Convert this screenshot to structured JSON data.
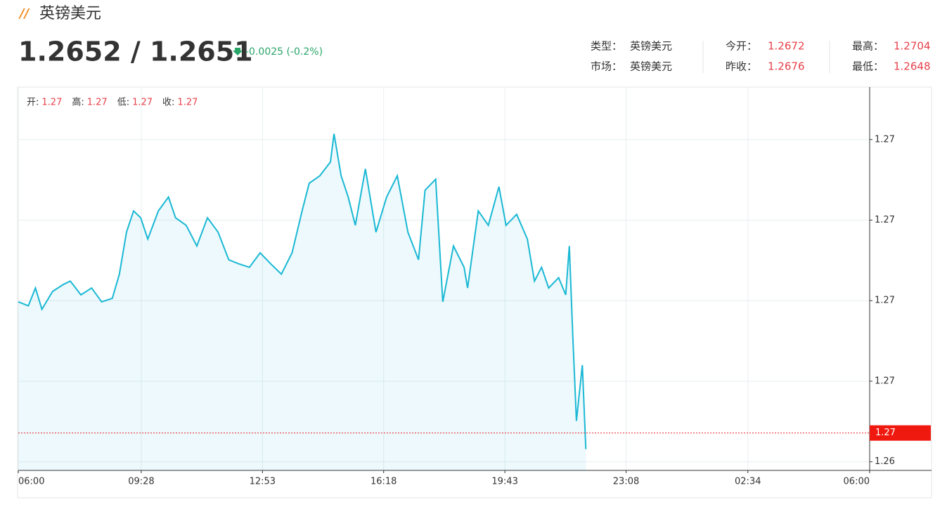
{
  "header": {
    "title": "英镑美元",
    "price": "1.2652 / 1.2651",
    "change": "-0.0025 (-0.2%)",
    "info": [
      [
        {
          "label": "类型：",
          "value": "英镑美元"
        },
        {
          "label": "今开：",
          "value": "1.2672"
        },
        {
          "label": "最高：",
          "value": "1.2704"
        }
      ],
      [
        {
          "label": "市场：",
          "value": "英镑美元"
        },
        {
          "label": "昨收：",
          "value": "1.2676"
        },
        {
          "label": "最低：",
          "value": "1.2648"
        }
      ]
    ]
  },
  "chart_data": {
    "type": "line",
    "ohlc": [
      {
        "label": "开:",
        "value": 1.27
      },
      {
        "label": "高:",
        "value": 1.27
      },
      {
        "label": "低:",
        "value": 1.27
      },
      {
        "label": "收:",
        "value": 1.27
      }
    ],
    "x": [
      0,
      17,
      29,
      40,
      58,
      76,
      88,
      106,
      124,
      141,
      159,
      171,
      183,
      195,
      207,
      219,
      237,
      254,
      266,
      284,
      302,
      320,
      338,
      356,
      373,
      391,
      409,
      427,
      445,
      463,
      480,
      492,
      510,
      528,
      534,
      546,
      558,
      570,
      587,
      605,
      623,
      641,
      659,
      677,
      688,
      706,
      718,
      736,
      754,
      760,
      778,
      795,
      813,
      825,
      843,
      861,
      873,
      885,
      897,
      914,
      926,
      932,
      938,
      944,
      954,
      960
    ],
    "series": [
      {
        "name": "英镑美元",
        "color": "#1ab8d4",
        "values": [
          1.26748,
          1.26741,
          1.26772,
          1.26735,
          1.26766,
          1.26778,
          1.26784,
          1.2676,
          1.26772,
          1.26748,
          1.26754,
          1.26796,
          1.26869,
          1.26906,
          1.26894,
          1.26857,
          1.26906,
          1.2693,
          1.26894,
          1.26881,
          1.26845,
          1.26894,
          1.26869,
          1.26821,
          1.26814,
          1.26808,
          1.26833,
          1.26814,
          1.26796,
          1.26833,
          1.26906,
          1.26954,
          1.26967,
          1.26991,
          1.2704,
          1.26967,
          1.2693,
          1.26881,
          1.26979,
          1.26869,
          1.2693,
          1.26967,
          1.26869,
          1.26821,
          1.26942,
          1.26961,
          1.26748,
          1.26845,
          1.26808,
          1.26772,
          1.26906,
          1.26881,
          1.26948,
          1.26881,
          1.269,
          1.26857,
          1.26784,
          1.26808,
          1.26772,
          1.2679,
          1.2676,
          1.26845,
          1.26687,
          1.26541,
          1.26638,
          1.26492
        ]
      }
    ],
    "current": {
      "value": 1.2652,
      "label": "1.27"
    },
    "xlim": [
      0,
      1440
    ],
    "xticks": [
      {
        "value": 0,
        "label": "06:00"
      },
      {
        "value": 208,
        "label": "09:28"
      },
      {
        "value": 413,
        "label": "12:53"
      },
      {
        "value": 618,
        "label": "16:18"
      },
      {
        "value": 823,
        "label": "19:43"
      },
      {
        "value": 1028,
        "label": "23:08"
      },
      {
        "value": 1234,
        "label": "02:34"
      },
      {
        "value": 1440,
        "label": "06:00"
      }
    ],
    "ylim": [
      1.26455,
      1.2712
    ],
    "yticks": [
      {
        "value": 1.2647,
        "label": "1.26"
      },
      {
        "value": 1.2661,
        "label": "1.27"
      },
      {
        "value": 1.2675,
        "label": "1.27"
      },
      {
        "value": 1.2689,
        "label": "1.27"
      },
      {
        "value": 1.2703,
        "label": "1.27"
      }
    ],
    "grid": true
  }
}
